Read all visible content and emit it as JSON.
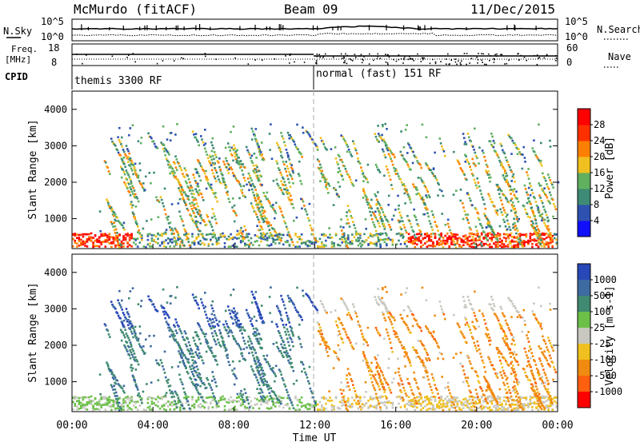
{
  "header": {
    "station": "McMurdo (fitACF)",
    "beam": "Beam 09",
    "date": "11/Dec/2015"
  },
  "summary_panels": {
    "nsky_label": "N.Sky",
    "nsky_ticks_left": [
      "10^5",
      "10^0"
    ],
    "nsky_ticks_right": [
      "10^5",
      "10^0"
    ],
    "nsearch_label": "N.Search",
    "freq_label_1": "Freq.",
    "freq_label_2": "[MHz]",
    "freq_ticks": [
      "18",
      "8"
    ],
    "nave_ticks": [
      "60",
      "0"
    ],
    "nave_label": "Nave",
    "cpid_label": "CPID",
    "cpid_first": "themis 3300 RF",
    "cpid_second": "normal (fast) 151 RF"
  },
  "chart_data": [
    {
      "type": "heatmap",
      "name": "power",
      "ylabel": "Slant Range [km]",
      "yticks": [
        "1000",
        "2000",
        "3000",
        "4000"
      ],
      "ylim": [
        180,
        4500
      ],
      "xlim_hours": [
        0,
        24
      ],
      "colorbar": {
        "label": "Power [dB]",
        "ticks": [
          "4",
          "8",
          "12",
          "16",
          "20",
          "24",
          "28"
        ],
        "colors": [
          "#1010ff",
          "#2f52b0",
          "#3d8a75",
          "#60b060",
          "#f0c020",
          "#ff8000",
          "#ff3000",
          "#ff0000"
        ]
      }
    },
    {
      "type": "heatmap",
      "name": "velocity",
      "ylabel": "Slant Range [km]",
      "yticks": [
        "1000",
        "2000",
        "3000",
        "4000"
      ],
      "ylim": [
        180,
        4500
      ],
      "xlim_hours": [
        0,
        24
      ],
      "xlabel": "Time UT",
      "xticks": [
        "00:00",
        "04:00",
        "08:00",
        "12:00",
        "16:00",
        "20:00",
        "00:00"
      ],
      "colorbar": {
        "label": "Velocity [m s-1]",
        "ticks": [
          "1000",
          "500",
          "100",
          "25",
          "-25",
          "-100",
          "-500",
          "-1000"
        ],
        "colors": [
          "#2848b8",
          "#3d6aa0",
          "#3f8a70",
          "#6cc048",
          "#c8c8c0",
          "#f0c020",
          "#f08a10",
          "#ff6010",
          "#ff0000"
        ]
      }
    }
  ]
}
